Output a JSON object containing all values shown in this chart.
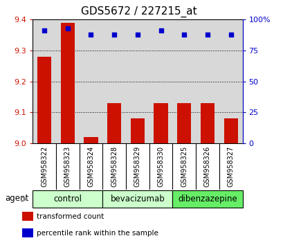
{
  "title": "GDS5672 / 227215_at",
  "samples": [
    "GSM958322",
    "GSM958323",
    "GSM958324",
    "GSM958328",
    "GSM958329",
    "GSM958330",
    "GSM958325",
    "GSM958326",
    "GSM958327"
  ],
  "transformed_counts": [
    9.28,
    9.39,
    9.02,
    9.13,
    9.08,
    9.13,
    9.13,
    9.13,
    9.08
  ],
  "percentile_ranks": [
    91,
    93,
    88,
    88,
    88,
    91,
    88,
    88,
    88
  ],
  "y_min": 9.0,
  "y_max": 9.4,
  "y_ticks": [
    9.0,
    9.1,
    9.2,
    9.3,
    9.4
  ],
  "right_y_ticks": [
    0,
    25,
    50,
    75,
    100
  ],
  "right_y_labels": [
    "0",
    "25",
    "50",
    "75",
    "100%"
  ],
  "groups": [
    {
      "label": "control",
      "indices": [
        0,
        1,
        2
      ],
      "color": "#ccffcc"
    },
    {
      "label": "bevacizumab",
      "indices": [
        3,
        4,
        5
      ],
      "color": "#ccffcc"
    },
    {
      "label": "dibenzazepine",
      "indices": [
        6,
        7,
        8
      ],
      "color": "#66ee66"
    }
  ],
  "bar_color": "#cc1100",
  "dot_color": "#0000cc",
  "bar_width": 0.6,
  "plot_bg_color": "#d8d8d8",
  "label_bg_color": "#c8c8c8",
  "agent_label": "agent",
  "legend_items": [
    {
      "label": "transformed count",
      "color": "#cc1100"
    },
    {
      "label": "percentile rank within the sample",
      "color": "#0000cc"
    }
  ],
  "title_fontsize": 11,
  "tick_fontsize": 8,
  "sample_fontsize": 7,
  "group_fontsize": 8.5
}
